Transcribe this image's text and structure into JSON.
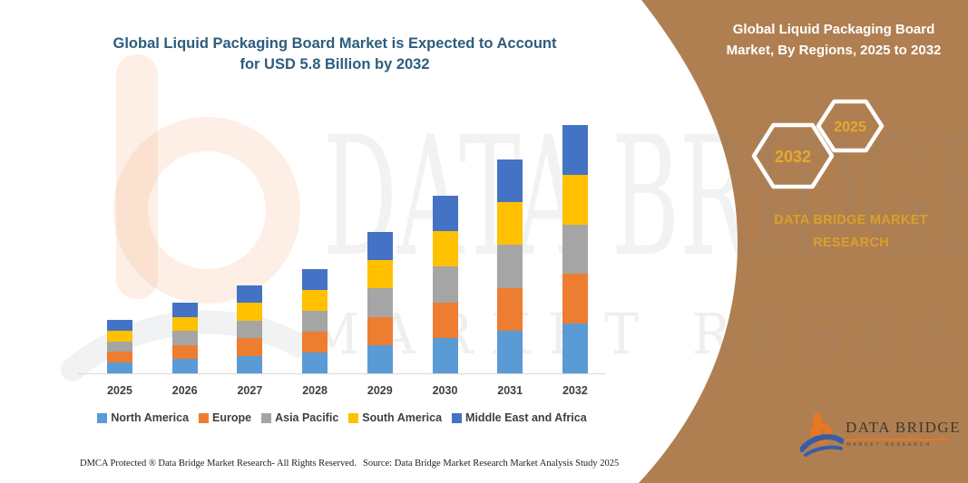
{
  "left_title": {
    "line1": "Global Liquid Packaging Board Market is Expected to Account",
    "line2": "for USD 5.8 Billion by 2032"
  },
  "chart_data": {
    "type": "bar",
    "stacked": true,
    "units": "USD Billion",
    "title": "Global Liquid Packaging Board Market is Expected to Account for USD 5.8 Billion by 2032",
    "categories": [
      "2025",
      "2026",
      "2027",
      "2028",
      "2029",
      "2030",
      "2031",
      "2032"
    ],
    "series": [
      {
        "name": "North America",
        "color": "#5B9BD5",
        "values": [
          0.25,
          0.33,
          0.41,
          0.49,
          0.66,
          0.83,
          1.0,
          1.16
        ]
      },
      {
        "name": "Europe",
        "color": "#ED7D31",
        "values": [
          0.25,
          0.33,
          0.41,
          0.49,
          0.66,
          0.83,
          1.0,
          1.16
        ]
      },
      {
        "name": "Asia Pacific",
        "color": "#A5A5A5",
        "values": [
          0.25,
          0.33,
          0.41,
          0.49,
          0.66,
          0.83,
          1.0,
          1.16
        ]
      },
      {
        "name": "South America",
        "color": "#FFC000",
        "values": [
          0.25,
          0.33,
          0.41,
          0.49,
          0.66,
          0.83,
          1.0,
          1.16
        ]
      },
      {
        "name": "Middle East and Africa",
        "color": "#4472C4",
        "values": [
          0.25,
          0.33,
          0.41,
          0.49,
          0.66,
          0.83,
          1.0,
          1.16
        ]
      }
    ],
    "totals": [
      1.25,
      1.65,
      2.05,
      2.45,
      3.3,
      4.15,
      5.0,
      5.8
    ],
    "xlabel": "",
    "ylabel": "",
    "y_axis_visible": false,
    "grid": false,
    "legend_position": "bottom"
  },
  "right_panel": {
    "bg_color": "#b07f51",
    "heading_line1": "Global Liquid Packaging Board",
    "heading_line2": "Market, By Regions, 2025 to 2032",
    "hex_large_label": "2032",
    "hex_small_label": "2025",
    "brand_line1": "DATA BRIDGE MARKET",
    "brand_line2": "RESEARCH",
    "accent_gold": "#e5aa2e"
  },
  "footer": {
    "dmca": "DMCA Protected ® Data Bridge Market Research-  All Rights Reserved.",
    "source": "Source: Data Bridge Market Research  Market Analysis Study 2025"
  },
  "logo": {
    "name": "DATA BRIDGE",
    "tagline": "MARKET RESEARCH",
    "orange": "#e87722",
    "blue": "#3a5ba9"
  },
  "watermark": {
    "text1": "DATA BRIDGE",
    "text2": "MARKET RESEARCH"
  }
}
